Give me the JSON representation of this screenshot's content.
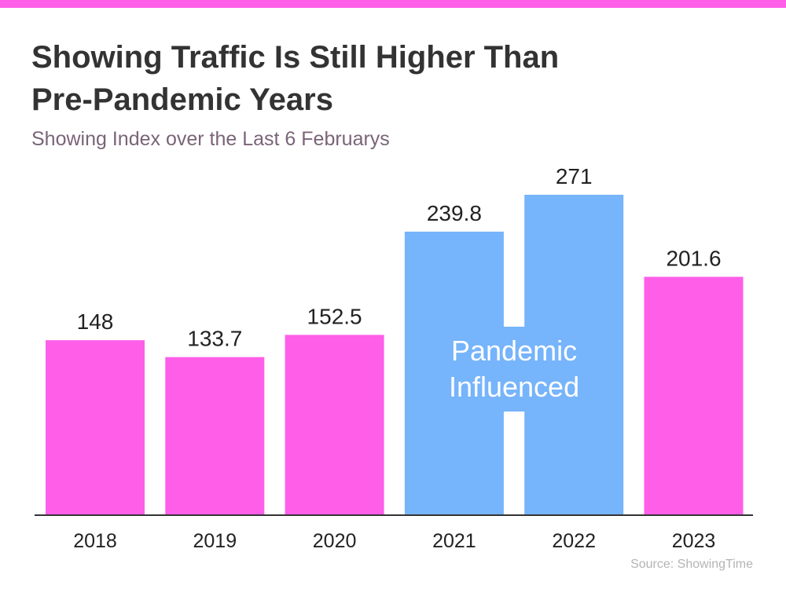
{
  "title": "Showing Traffic Is Still Higher Than Pre-Pandemic Years",
  "subtitle": "Showing Index over the Last 6 Februarys",
  "source": "Source: ShowingTime",
  "colors": {
    "accent": "#ff5ee9",
    "pre_pandemic": "#ff5ee9",
    "pandemic": "#76b4fb",
    "baseline": "#333333"
  },
  "chart_data": {
    "type": "bar",
    "categories": [
      "2018",
      "2019",
      "2020",
      "2021",
      "2022",
      "2023"
    ],
    "values": [
      148,
      133.7,
      152.5,
      239.8,
      271,
      201.6
    ],
    "value_labels": [
      "148",
      "133.7",
      "152.5",
      "239.8",
      "271",
      "201.6"
    ],
    "bar_colors": [
      "#ff5ee9",
      "#ff5ee9",
      "#ff5ee9",
      "#76b4fb",
      "#76b4fb",
      "#ff5ee9"
    ],
    "title": "Showing Traffic Is Still Higher Than Pre-Pandemic Years",
    "subtitle": "Showing Index over the Last 6 Februarys",
    "xlabel": "",
    "ylabel": "",
    "ylim": [
      0,
      271
    ],
    "grid": false,
    "annotation": {
      "text_lines": [
        "Pandemic",
        "Influenced"
      ],
      "spans_categories": [
        "2021",
        "2022"
      ]
    }
  }
}
